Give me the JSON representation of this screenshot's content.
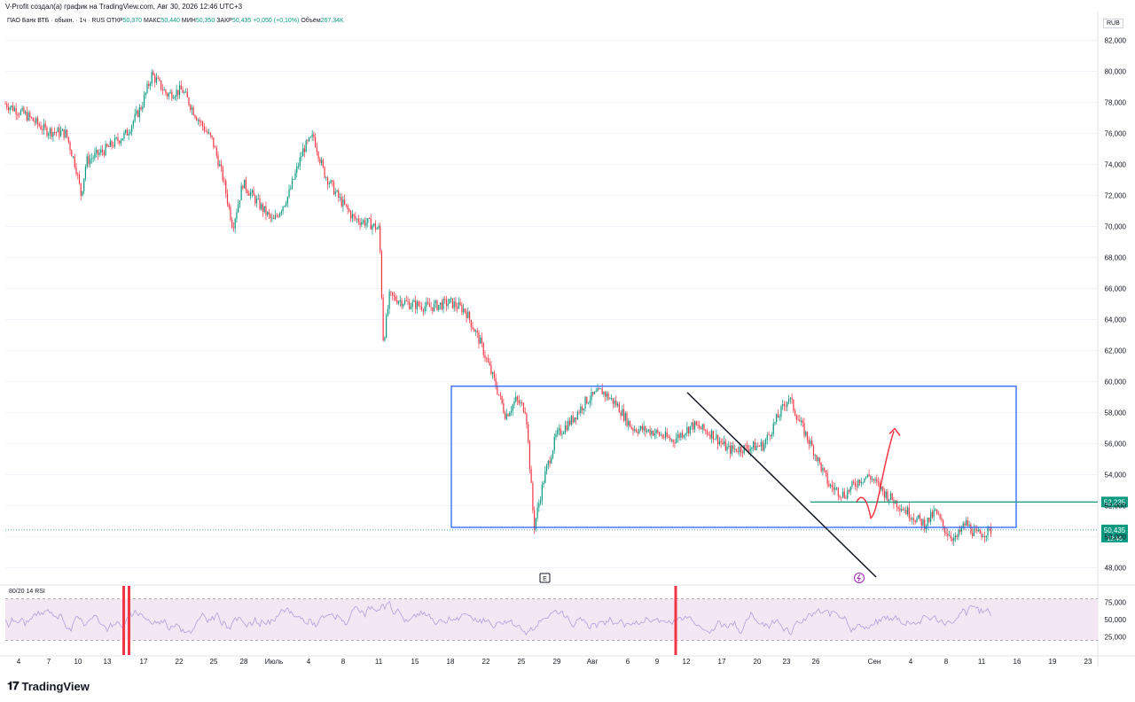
{
  "header": {
    "caption": "V-Profit создал(а) график на TradingView.com, Авг 30, 2026 12:46 UTC+3",
    "symbol": "ПАО Банк ВТБ · обыкн. · 1ч · RUS",
    "open_label": "ОТКР",
    "open": "50,370",
    "high_label": "МАКС",
    "high": "50,440",
    "low_label": "МИН",
    "low": "50,350",
    "close_label": "ЗАКР",
    "close": "50,435",
    "change": "+0,050 (+0,10%)",
    "volume_label": "Объём",
    "volume": "267,34K"
  },
  "currency": "RUB",
  "brand": {
    "name": "TradingView",
    "logo_icon": "tradingview-logo-icon"
  },
  "chart_data": [
    {
      "type": "candlestick",
      "title": "ПАО Банк ВТБ · обыкн. · 1ч · RUS",
      "ylim": [
        47000,
        83000
      ],
      "y_ticks": [
        48000,
        50000,
        52000,
        54000,
        56000,
        58000,
        60000,
        62000,
        64000,
        66000,
        68000,
        70000,
        72000,
        74000,
        76000,
        78000,
        80000,
        82000
      ],
      "y_tick_labels": [
        "48,000",
        "50,000",
        "52,000",
        "54,000",
        "56,000",
        "58,000",
        "60,000",
        "62,000",
        "64,000",
        "66,000",
        "68,000",
        "70,000",
        "72,000",
        "74,000",
        "76,000",
        "78,000",
        "80,000",
        "82,000"
      ],
      "x_tick_labels": [
        "4",
        "7",
        "10",
        "13",
        "17",
        "22",
        "25",
        "28",
        "Июль",
        "4",
        "8",
        "11",
        "15",
        "18",
        "22",
        "25",
        "29",
        "Авг",
        "6",
        "9",
        "12",
        "17",
        "20",
        "23",
        "26",
        "Сен",
        "4",
        "8",
        "11",
        "16",
        "19",
        "23"
      ],
      "price_path": [
        [
          0,
          77900
        ],
        [
          0.02,
          77200
        ],
        [
          0.04,
          76200
        ],
        [
          0.06,
          76000
        ],
        [
          0.07,
          73800
        ],
        [
          0.075,
          72000
        ],
        [
          0.08,
          74200
        ],
        [
          0.1,
          75000
        ],
        [
          0.12,
          76000
        ],
        [
          0.135,
          77800
        ],
        [
          0.145,
          79800
        ],
        [
          0.16,
          78500
        ],
        [
          0.175,
          78800
        ],
        [
          0.19,
          77000
        ],
        [
          0.205,
          75500
        ],
        [
          0.215,
          73200
        ],
        [
          0.225,
          70000
        ],
        [
          0.235,
          72800
        ],
        [
          0.25,
          71500
        ],
        [
          0.265,
          70300
        ],
        [
          0.28,
          72000
        ],
        [
          0.295,
          75000
        ],
        [
          0.305,
          75800
        ],
        [
          0.315,
          73500
        ],
        [
          0.33,
          71800
        ],
        [
          0.345,
          70500
        ],
        [
          0.36,
          70200
        ],
        [
          0.37,
          69800
        ],
        [
          0.374,
          62500
        ],
        [
          0.38,
          65500
        ],
        [
          0.4,
          65000
        ],
        [
          0.42,
          64800
        ],
        [
          0.44,
          65100
        ],
        [
          0.455,
          64600
        ],
        [
          0.47,
          62500
        ],
        [
          0.485,
          59800
        ],
        [
          0.495,
          57800
        ],
        [
          0.505,
          58800
        ],
        [
          0.515,
          58200
        ],
        [
          0.523,
          50600
        ],
        [
          0.533,
          53800
        ],
        [
          0.545,
          56500
        ],
        [
          0.56,
          57500
        ],
        [
          0.575,
          58800
        ],
        [
          0.59,
          59400
        ],
        [
          0.605,
          58500
        ],
        [
          0.62,
          57000
        ],
        [
          0.64,
          56800
        ],
        [
          0.66,
          56200
        ],
        [
          0.68,
          57200
        ],
        [
          0.7,
          56600
        ],
        [
          0.715,
          55600
        ],
        [
          0.73,
          55700
        ],
        [
          0.75,
          55900
        ],
        [
          0.765,
          57800
        ],
        [
          0.775,
          59000
        ],
        [
          0.785,
          57500
        ],
        [
          0.8,
          55500
        ],
        [
          0.815,
          53300
        ],
        [
          0.83,
          52700
        ],
        [
          0.845,
          53700
        ],
        [
          0.855,
          53900
        ],
        [
          0.87,
          52800
        ],
        [
          0.885,
          52000
        ],
        [
          0.9,
          51200
        ],
        [
          0.91,
          50800
        ],
        [
          0.92,
          51600
        ],
        [
          0.93,
          50400
        ],
        [
          0.94,
          49800
        ],
        [
          0.95,
          50900
        ],
        [
          0.96,
          50100
        ],
        [
          0.975,
          50400
        ]
      ],
      "annotations": {
        "rectangle": {
          "x_from": "18",
          "x_to": "16",
          "y_top": 59700,
          "y_bottom": 50600,
          "color": "#2962ff"
        },
        "trendline": {
          "from_y": 59300,
          "to_y": 47400,
          "color": "#131722"
        },
        "level_line": {
          "y": 52235,
          "label": "52,235",
          "color": "#089981"
        },
        "last_price": {
          "y": 50435,
          "label": "50,435",
          "timer": "13:46",
          "color": "#089981"
        },
        "projection_arrow": {
          "color": "#f23645",
          "target_y": 56800
        },
        "earnings_marker": "E",
        "dividend_marker": "dividend-icon"
      }
    },
    {
      "type": "line",
      "title": "80/20 14 RSI",
      "ylim": [
        0,
        100
      ],
      "band": [
        20,
        80
      ],
      "y_tick_labels": [
        "75,000",
        "50,000",
        "25,000"
      ],
      "y_ticks": [
        75,
        50,
        25
      ],
      "alert_markers": [
        "red-rsi-bar",
        "red-rsi-bar",
        "red-rsi-bar"
      ],
      "band_color": "#f3e7f3",
      "line_color": "#b39ddb"
    }
  ],
  "colors": {
    "up": "#089981",
    "down": "#f23645",
    "grid": "#f0f3fa"
  }
}
